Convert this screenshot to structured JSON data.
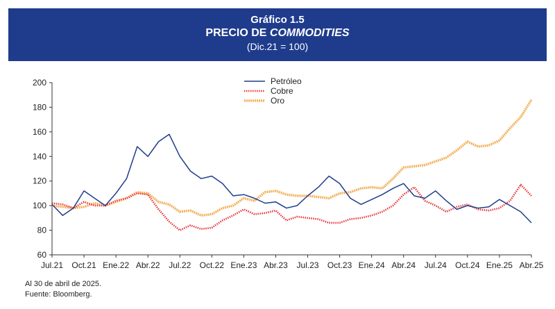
{
  "header": {
    "figure_label": "Gráfico 1.5",
    "title_prefix": "PRECIO DE ",
    "title_emphasis": "COMMODITIES",
    "subtitle": "(Dic.21 = 100)"
  },
  "notes": {
    "date_note": "Al 30 de abril de 2025.",
    "source": "Fuente: Bloomberg."
  },
  "colors": {
    "header_bg": "#1f3c8c",
    "petroleo": "#1f3c8c",
    "cobre": "#e8343a",
    "oro": "#f3b15a"
  },
  "chart_data": {
    "type": "line",
    "title": "PRECIO DE COMMODITIES",
    "subtitle": "(Dic.21 = 100)",
    "xlabel": "",
    "ylabel": "",
    "ylim": [
      60,
      200
    ],
    "yticks": [
      60,
      80,
      100,
      120,
      140,
      160,
      180,
      200
    ],
    "xticks": [
      "Jul.21",
      "Oct.21",
      "Ene.22",
      "Abr.22",
      "Jul.22",
      "Oct.22",
      "Ene.23",
      "Abr.23",
      "Jul.23",
      "Oct.23",
      "Ene.24",
      "Abr.24",
      "Jul.24",
      "Oct.24",
      "Ene.25",
      "Abr.25"
    ],
    "xtick_dates": [
      "2021-07",
      "2021-10",
      "2022-01",
      "2022-04",
      "2022-07",
      "2022-10",
      "2023-01",
      "2023-04",
      "2023-07",
      "2023-10",
      "2024-01",
      "2024-04",
      "2024-07",
      "2024-10",
      "2025-01",
      "2025-04"
    ],
    "grid": false,
    "legend_position": "top-center",
    "x": [
      "2021-07",
      "2021-08",
      "2021-09",
      "2021-10",
      "2021-11",
      "2021-12",
      "2022-01",
      "2022-02",
      "2022-03",
      "2022-04",
      "2022-05",
      "2022-06",
      "2022-07",
      "2022-08",
      "2022-09",
      "2022-10",
      "2022-11",
      "2022-12",
      "2023-01",
      "2023-02",
      "2023-03",
      "2023-04",
      "2023-05",
      "2023-06",
      "2023-07",
      "2023-08",
      "2023-09",
      "2023-10",
      "2023-11",
      "2023-12",
      "2024-01",
      "2024-02",
      "2024-03",
      "2024-04",
      "2024-05",
      "2024-06",
      "2024-07",
      "2024-08",
      "2024-09",
      "2024-10",
      "2024-11",
      "2024-12",
      "2025-01",
      "2025-02",
      "2025-03",
      "2025-04"
    ],
    "series": [
      {
        "name": "Petróleo",
        "style": "solid",
        "values": [
          101,
          92,
          98,
          112,
          106,
          100,
          110,
          122,
          148,
          140,
          152,
          158,
          140,
          128,
          122,
          124,
          118,
          108,
          109,
          106,
          102,
          103,
          98,
          100,
          108,
          115,
          124,
          118,
          106,
          101,
          105,
          109,
          114,
          118,
          108,
          106,
          112,
          104,
          97,
          100,
          98,
          99,
          105,
          100,
          95,
          86
        ]
      },
      {
        "name": "Cobre",
        "style": "dotted",
        "values": [
          102,
          101,
          98,
          103,
          100,
          100,
          104,
          106,
          110,
          109,
          97,
          87,
          80,
          84,
          81,
          82,
          88,
          92,
          97,
          93,
          94,
          96,
          88,
          91,
          90,
          89,
          86,
          86,
          89,
          90,
          92,
          95,
          100,
          109,
          115,
          104,
          100,
          95,
          99,
          101,
          97,
          96,
          98,
          104,
          117,
          108
        ]
      },
      {
        "name": "Oro",
        "style": "dashed",
        "values": [
          100,
          99,
          98,
          99,
          102,
          100,
          103,
          106,
          111,
          110,
          103,
          101,
          95,
          96,
          92,
          93,
          98,
          100,
          106,
          104,
          111,
          112,
          109,
          108,
          108,
          107,
          106,
          110,
          111,
          114,
          115,
          114,
          122,
          131,
          132,
          133,
          136,
          139,
          145,
          152,
          148,
          149,
          153,
          163,
          172,
          186
        ]
      }
    ]
  }
}
